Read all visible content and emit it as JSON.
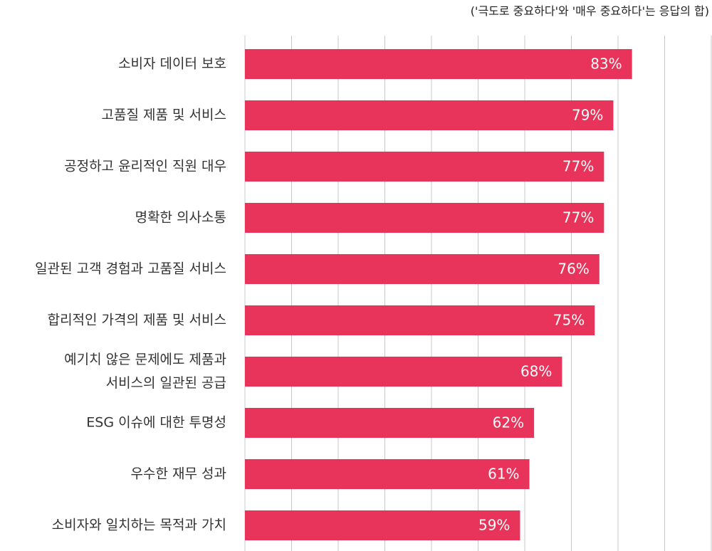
{
  "chart_data": {
    "type": "bar",
    "orientation": "horizontal",
    "subtitle": "('극도로 중요하다'와 '매우 중요하다'는 응답의 합)",
    "categories": [
      "소비자 데이터 보호",
      "고품질 제품 및 서비스",
      "공정하고 윤리적인 직원 대우",
      "명확한 의사소통",
      "일관된 고객 경험과 고품질 서비스",
      "합리적인 가격의 제품 및 서비스",
      "예기치 않은 문제에도 제품과\n서비스의 일관된 공급",
      "ESG 이슈에 대한 투명성",
      "우수한 재무 성과",
      "소비자와 일치하는 목적과 가치"
    ],
    "values": [
      83,
      79,
      77,
      77,
      76,
      75,
      68,
      62,
      61,
      59
    ],
    "value_labels": [
      "83%",
      "79%",
      "77%",
      "77%",
      "76%",
      "75%",
      "68%",
      "62%",
      "61%",
      "59%"
    ],
    "color": "#e8345a",
    "xlim": [
      0,
      100
    ],
    "xticks": [
      0,
      10,
      20,
      30,
      40,
      50,
      60,
      70,
      80,
      90,
      100
    ],
    "grid": true
  }
}
